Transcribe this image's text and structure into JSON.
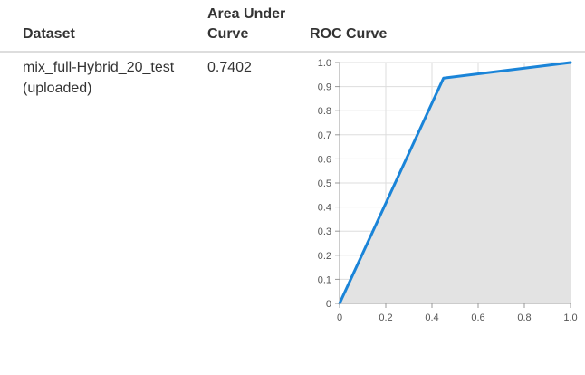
{
  "table": {
    "headers": {
      "dataset": "Dataset",
      "auc": "Area Under Curve",
      "roc": "ROC Curve"
    },
    "rows": [
      {
        "dataset_name": "mix_full-Hybrid_20_test",
        "dataset_note": "(uploaded)",
        "auc": "0.7402"
      }
    ]
  },
  "colors": {
    "curve": "#1a84d8",
    "fill": "#e3e3e3",
    "grid": "#dddddd",
    "axis": "#999999"
  },
  "chart_data": {
    "type": "area",
    "x": [
      0,
      0.45,
      1.0
    ],
    "y": [
      0,
      0.935,
      1.0
    ],
    "xlim": [
      0,
      1
    ],
    "ylim": [
      0,
      1
    ],
    "x_ticks": [
      "0",
      "0.2",
      "0.4",
      "0.6",
      "0.8",
      "1.0"
    ],
    "y_ticks": [
      "0",
      "0.1",
      "0.2",
      "0.3",
      "0.4",
      "0.5",
      "0.6",
      "0.7",
      "0.8",
      "0.9",
      "1.0"
    ],
    "grid": true,
    "legend": "none"
  }
}
